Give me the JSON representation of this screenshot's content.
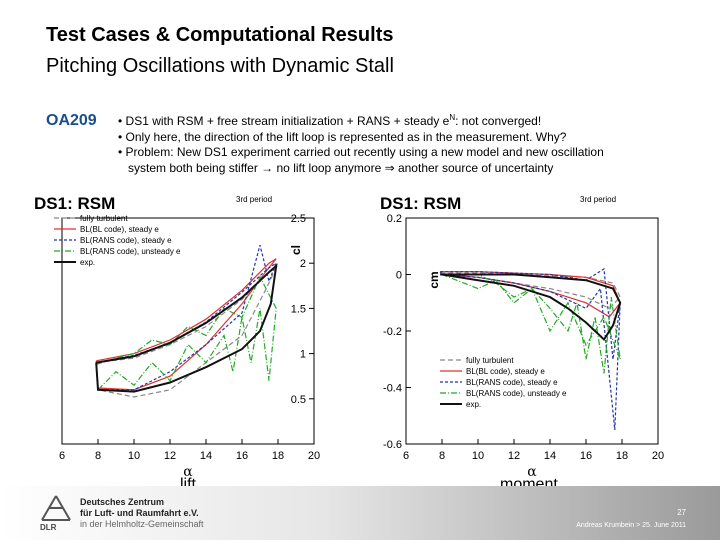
{
  "slide": {
    "title_line1": "Test Cases & Computational Results",
    "title_line2": "Pitching Oscillations with Dynamic Stall",
    "airfoil": "OA209",
    "bullets": [
      "• DS1 with RSM + free stream initialization + RANS + steady e",
      "• Only here, the direction of the lift loop is represented as in the measurement. Why?",
      "• Problem: New DS1 experiment carried out recently using a new model and new oscillation",
      "system both being stiffer → no lift loop anymore ⇒ another source of uncertainty"
    ],
    "bullet1_sup": "N",
    "bullet1_tail": ": not converged!",
    "caption_lift": "lift",
    "caption_moment": "moment",
    "footer": {
      "org_line1": "Deutsches Zentrum",
      "org_line2": "für Luft- und Raumfahrt e.V.",
      "org_line3": "in der Helmholtz-Gemeinschaft",
      "logo_text": "DLR",
      "page": "27",
      "author_date": "Andreas Krumbein > 25. June 2011"
    }
  },
  "chart_data": [
    {
      "type": "line",
      "title": "DS1: RSM",
      "period_label": "3rd period",
      "xlabel": "α",
      "ylabel": "cl",
      "xlim": [
        6,
        20
      ],
      "ylim": [
        0,
        2.5
      ],
      "xticks": [
        6,
        8,
        10,
        12,
        14,
        16,
        18,
        20
      ],
      "yticks": [
        0.5,
        1,
        1.5,
        2,
        2.5
      ],
      "legend_position": "top-left",
      "series": [
        {
          "name": "fully turbulent",
          "color": "#888888",
          "dash": "5,3",
          "x": [
            7.9,
            10,
            12,
            14,
            16,
            17.5,
            17.9,
            17.3,
            16,
            14,
            12,
            10,
            8,
            7.9
          ],
          "y": [
            0.9,
            0.95,
            1.1,
            1.3,
            1.6,
            1.9,
            1.95,
            1.7,
            1.2,
            0.9,
            0.6,
            0.52,
            0.6,
            0.9
          ]
        },
        {
          "name": "BL(BL code), steady e",
          "color": "#e03030",
          "dash": "",
          "x": [
            7.9,
            10,
            12,
            14,
            16,
            17.5,
            17.9,
            17.3,
            16,
            14,
            12,
            10,
            8,
            7.9
          ],
          "y": [
            0.92,
            1.0,
            1.15,
            1.38,
            1.7,
            2.0,
            2.05,
            1.9,
            1.55,
            1.1,
            0.75,
            0.6,
            0.62,
            0.92
          ]
        },
        {
          "name": "BL(RANS code), steady e",
          "color": "#2233aa",
          "dash": "3,2",
          "x": [
            7.9,
            10,
            12,
            14,
            16,
            17.5,
            17.9,
            17.5,
            17,
            16,
            14,
            12,
            10,
            8,
            7.9
          ],
          "y": [
            0.9,
            0.98,
            1.12,
            1.35,
            1.68,
            1.95,
            2.0,
            1.8,
            2.2,
            1.45,
            1.1,
            0.8,
            0.6,
            0.6,
            0.9
          ]
        },
        {
          "name": "BL(RANS code), unsteady e",
          "color": "#22aa22",
          "dash": "6,2,1,2",
          "x": [
            7.9,
            9,
            10,
            11,
            12,
            13,
            14,
            15,
            16,
            17,
            17.9,
            17.5,
            17,
            16.5,
            16,
            15.5,
            15,
            14,
            13,
            12,
            11,
            10,
            9,
            8,
            7.9
          ],
          "y": [
            0.88,
            0.95,
            1.0,
            1.15,
            1.1,
            1.3,
            1.2,
            1.5,
            1.4,
            1.85,
            1.5,
            0.7,
            1.5,
            0.9,
            1.4,
            0.8,
            1.2,
            0.9,
            1.1,
            0.7,
            0.9,
            0.65,
            0.8,
            0.6,
            0.88
          ]
        },
        {
          "name": "exp.",
          "color": "#111111",
          "dash": "",
          "x": [
            7.9,
            10,
            12,
            14,
            16,
            17.5,
            17.9,
            17.6,
            17,
            16,
            14,
            12,
            10,
            8,
            7.9
          ],
          "y": [
            0.9,
            0.97,
            1.12,
            1.34,
            1.62,
            1.9,
            1.97,
            1.55,
            1.25,
            1.05,
            0.85,
            0.68,
            0.58,
            0.6,
            0.9
          ]
        }
      ]
    },
    {
      "type": "line",
      "title": "DS1: RSM",
      "period_label": "3rd period",
      "xlabel": "α",
      "ylabel": "cm",
      "xlim": [
        6,
        20
      ],
      "ylim": [
        -0.6,
        0.2
      ],
      "xticks": [
        6,
        8,
        10,
        12,
        14,
        16,
        18,
        20
      ],
      "yticks": [
        -0.6,
        -0.4,
        -0.2,
        0,
        0.2
      ],
      "legend_position": "bottom-center",
      "series": [
        {
          "name": "fully turbulent",
          "color": "#888888",
          "dash": "5,3",
          "x": [
            7.9,
            10,
            12,
            14,
            16,
            17.5,
            17.9,
            17.3,
            16,
            14,
            12,
            10,
            8,
            7.9
          ],
          "y": [
            0.005,
            0.005,
            0.0,
            -0.005,
            -0.01,
            -0.03,
            -0.08,
            -0.12,
            -0.08,
            -0.05,
            -0.03,
            -0.01,
            0.0,
            0.005
          ]
        },
        {
          "name": "BL(BL code), steady e",
          "color": "#e03030",
          "dash": "",
          "x": [
            7.9,
            10,
            12,
            14,
            16,
            17.5,
            17.9,
            17.3,
            16,
            14,
            12,
            10,
            8,
            7.9
          ],
          "y": [
            0.01,
            0.01,
            0.005,
            0.0,
            -0.01,
            -0.04,
            -0.1,
            -0.15,
            -0.1,
            -0.06,
            -0.03,
            -0.01,
            0.0,
            0.01
          ]
        },
        {
          "name": "BL(RANS code), steady e",
          "color": "#2233aa",
          "dash": "3,2",
          "x": [
            7.9,
            10,
            12,
            14,
            16,
            17,
            17.5,
            17.9,
            17.6,
            17.2,
            16.8,
            16,
            14,
            12,
            10,
            8,
            7.9
          ],
          "y": [
            0.01,
            0.01,
            0.005,
            0.0,
            -0.02,
            0.02,
            -0.3,
            -0.1,
            -0.55,
            -0.3,
            -0.05,
            -0.12,
            -0.06,
            -0.03,
            -0.01,
            0.0,
            0.01
          ]
        },
        {
          "name": "BL(RANS code), unsteady e",
          "color": "#22aa22",
          "dash": "6,2,1,2",
          "x": [
            7.9,
            10,
            11,
            12,
            13,
            14,
            15,
            16,
            17,
            17.9,
            17.4,
            17,
            16.5,
            16,
            15.5,
            15,
            14,
            13,
            12,
            11,
            10,
            8,
            7.9
          ],
          "y": [
            0.0,
            0.0,
            -0.03,
            -0.08,
            -0.05,
            -0.2,
            -0.1,
            -0.25,
            -0.15,
            -0.3,
            -0.08,
            -0.35,
            -0.15,
            -0.3,
            -0.1,
            -0.2,
            -0.12,
            -0.05,
            -0.1,
            -0.02,
            -0.05,
            0.0,
            0.0
          ]
        },
        {
          "name": "exp.",
          "color": "#111111",
          "dash": "",
          "x": [
            7.9,
            10,
            12,
            14,
            16,
            17.5,
            17.9,
            17.5,
            17,
            16,
            15,
            14,
            12,
            10,
            8,
            7.9
          ],
          "y": [
            0.0,
            0.0,
            0.0,
            -0.01,
            -0.02,
            -0.05,
            -0.1,
            -0.18,
            -0.23,
            -0.17,
            -0.12,
            -0.08,
            -0.04,
            -0.02,
            0.0,
            0.0
          ]
        }
      ]
    }
  ]
}
